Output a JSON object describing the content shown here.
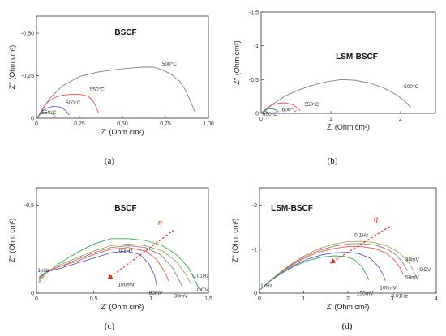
{
  "chart_data": [
    {
      "type": "line",
      "panel_label": "(a)",
      "title": "BSCF",
      "xlabel": "Z' (Ohm cm²)",
      "ylabel": "Z'' (Ohm cm²)",
      "xlim": [
        0,
        1.0
      ],
      "ylim": [
        0,
        -0.6
      ],
      "x_ticks": [
        "0",
        "0,25",
        "0,50",
        "0,75",
        "1,00"
      ],
      "y_ticks": [
        "0",
        "-0,25",
        "-0,50"
      ],
      "y_tick_values": [
        0,
        -0.25,
        -0.5
      ],
      "series": [
        {
          "name": "500°C",
          "color": "#808080",
          "x": [
            0.02,
            0.04,
            0.08,
            0.15,
            0.25,
            0.35,
            0.45,
            0.55,
            0.62,
            0.68,
            0.73,
            0.78,
            0.83,
            0.87,
            0.9,
            0.92
          ],
          "y": [
            -0.02,
            -0.06,
            -0.12,
            -0.19,
            -0.245,
            -0.27,
            -0.285,
            -0.295,
            -0.3,
            -0.3,
            -0.285,
            -0.26,
            -0.22,
            -0.16,
            -0.09,
            -0.04
          ]
        },
        {
          "name": "550°C",
          "color": "#e8584a",
          "x": [
            0.01,
            0.03,
            0.06,
            0.1,
            0.15,
            0.2,
            0.25,
            0.3,
            0.33,
            0.35,
            0.36
          ],
          "y": [
            -0.01,
            -0.05,
            -0.09,
            -0.12,
            -0.135,
            -0.14,
            -0.14,
            -0.13,
            -0.1,
            -0.06,
            -0.03
          ]
        },
        {
          "name": "600°C",
          "color": "#5b5bd6",
          "x": [
            0.01,
            0.03,
            0.06,
            0.1,
            0.14,
            0.17,
            0.19
          ],
          "y": [
            -0.01,
            -0.04,
            -0.06,
            -0.07,
            -0.065,
            -0.045,
            -0.02
          ]
        },
        {
          "name": "650°C",
          "color": "#3aaa55",
          "x": [
            0.0,
            0.02,
            0.05,
            0.08,
            0.1,
            0.11
          ],
          "y": [
            -0.005,
            -0.02,
            -0.035,
            -0.03,
            -0.02,
            -0.01
          ]
        }
      ],
      "curve_labels": [
        {
          "text": "500°C",
          "x": 0.73,
          "y": -0.31
        },
        {
          "text": "550°C",
          "x": 0.31,
          "y": -0.16
        },
        {
          "text": "600°C",
          "x": 0.17,
          "y": -0.08
        },
        {
          "text": "650°C",
          "x": 0.03,
          "y": -0.025
        }
      ]
    },
    {
      "type": "line",
      "panel_label": "(b)",
      "title": "LSM-BSCF",
      "xlabel": "Z' (Ohm cm²)",
      "ylabel": "Z'' (Ohm cm²)",
      "xlim": [
        0,
        2.5
      ],
      "ylim": [
        0,
        -1.5
      ],
      "x_ticks": [
        "0",
        "1",
        "2"
      ],
      "x_tick_values": [
        0,
        1,
        2
      ],
      "y_ticks": [
        "0",
        "-0,5",
        "-1",
        "-1,5"
      ],
      "y_tick_values": [
        0,
        -0.5,
        -1.0,
        -1.5
      ],
      "series": [
        {
          "name": "500°C",
          "color": "#808080",
          "x": [
            0.03,
            0.1,
            0.2,
            0.35,
            0.55,
            0.75,
            0.95,
            1.15,
            1.35,
            1.55,
            1.75,
            1.95,
            2.08,
            2.15
          ],
          "y": [
            -0.03,
            -0.09,
            -0.16,
            -0.26,
            -0.35,
            -0.42,
            -0.47,
            -0.5,
            -0.49,
            -0.45,
            -0.38,
            -0.27,
            -0.16,
            -0.08
          ]
        },
        {
          "name": "550°C",
          "color": "#e8584a",
          "x": [
            0.02,
            0.08,
            0.15,
            0.25,
            0.35,
            0.45,
            0.52,
            0.56
          ],
          "y": [
            -0.02,
            -0.07,
            -0.12,
            -0.15,
            -0.155,
            -0.13,
            -0.08,
            -0.04
          ]
        },
        {
          "name": "600°C",
          "color": "#5b5bd6",
          "x": [
            0.01,
            0.05,
            0.1,
            0.16,
            0.21,
            0.25
          ],
          "y": [
            -0.01,
            -0.04,
            -0.065,
            -0.07,
            -0.05,
            -0.02
          ]
        },
        {
          "name": "650°C",
          "color": "#3aaa55",
          "x": [
            0.0,
            0.03,
            0.06,
            0.09,
            0.11
          ],
          "y": [
            -0.005,
            -0.02,
            -0.03,
            -0.02,
            -0.01
          ]
        }
      ],
      "curve_labels": [
        {
          "text": "500°C",
          "x": 2.05,
          "y": -0.37
        },
        {
          "text": "550°C",
          "x": 0.62,
          "y": -0.11
        },
        {
          "text": "600°C",
          "x": 0.3,
          "y": -0.03
        },
        {
          "text": "650°C",
          "x": 0.02,
          "y": 0.035
        }
      ]
    },
    {
      "type": "line",
      "panel_label": "(c)",
      "title": "BSCF",
      "xlabel": "Z' (Ohm cm²)",
      "ylabel": "Z'' (Ohm cm²)",
      "xlim": [
        0,
        1.5
      ],
      "ylim": [
        0,
        -0.6
      ],
      "x_ticks": [
        "0",
        "0,5",
        "1",
        "1,5"
      ],
      "x_tick_values": [
        0,
        0.5,
        1.0,
        1.5
      ],
      "y_ticks": [
        "0",
        "-0,5"
      ],
      "y_tick_values": [
        0,
        -0.5
      ],
      "series": [
        {
          "name": "OCV",
          "color": "#3aaa55",
          "x": [
            0.02,
            0.08,
            0.2,
            0.35,
            0.5,
            0.65,
            0.8,
            0.95,
            1.1,
            1.22,
            1.32,
            1.38,
            1.42
          ],
          "y": [
            -0.06,
            -0.11,
            -0.17,
            -0.23,
            -0.28,
            -0.31,
            -0.31,
            -0.3,
            -0.27,
            -0.22,
            -0.15,
            -0.08,
            -0.02
          ]
        },
        {
          "name": "0.01Hz",
          "color": "#b0a060",
          "x": [
            0.02,
            0.08,
            0.2,
            0.35,
            0.5,
            0.65,
            0.8,
            0.95,
            1.1,
            1.22,
            1.3,
            1.35
          ],
          "y": [
            -0.07,
            -0.12,
            -0.16,
            -0.2,
            -0.24,
            -0.27,
            -0.28,
            -0.27,
            -0.24,
            -0.18,
            -0.11,
            -0.05
          ]
        },
        {
          "name": "30mV",
          "color": "#888888",
          "x": [
            0.02,
            0.08,
            0.2,
            0.35,
            0.5,
            0.65,
            0.8,
            0.95,
            1.08,
            1.18,
            1.24,
            1.27
          ],
          "y": [
            -0.08,
            -0.12,
            -0.15,
            -0.19,
            -0.23,
            -0.26,
            -0.27,
            -0.26,
            -0.22,
            -0.15,
            -0.08,
            -0.04
          ]
        },
        {
          "name": "50mV",
          "color": "#e8584a",
          "x": [
            0.02,
            0.08,
            0.2,
            0.35,
            0.5,
            0.65,
            0.8,
            0.95,
            1.05,
            1.12,
            1.16
          ],
          "y": [
            -0.08,
            -0.12,
            -0.15,
            -0.18,
            -0.22,
            -0.25,
            -0.26,
            -0.24,
            -0.19,
            -0.12,
            -0.06
          ]
        },
        {
          "name": "100mV",
          "color": "#5b5bd6",
          "x": [
            0.02,
            0.08,
            0.2,
            0.35,
            0.5,
            0.65,
            0.78,
            0.9,
            0.98,
            1.03,
            1.05
          ],
          "y": [
            -0.09,
            -0.12,
            -0.14,
            -0.17,
            -0.2,
            -0.23,
            -0.24,
            -0.22,
            -0.17,
            -0.1,
            -0.04
          ]
        }
      ],
      "curve_labels": [
        {
          "text": "1kHz",
          "x": 0.01,
          "y": -0.12
        },
        {
          "text": "0.1Hz",
          "x": 0.72,
          "y": -0.23
        },
        {
          "text": "0.01Hz",
          "x": 1.36,
          "y": -0.09
        },
        {
          "text": "OCV",
          "x": 1.4,
          "y": -0.01
        },
        {
          "text": "30mV",
          "x": 1.2,
          "y": 0.025
        },
        {
          "text": "50mV",
          "x": 0.98,
          "y": 0.01
        },
        {
          "text": "100mV",
          "x": 0.71,
          "y": -0.04
        }
      ],
      "arrow": {
        "label": "η",
        "x1": 1.2,
        "y1": -0.36,
        "x2": 0.62,
        "y2": -0.08
      }
    },
    {
      "type": "line",
      "panel_label": "(d)",
      "title": "LSM-BSCF",
      "xlabel": "Z' (Ohm cm²)",
      "ylabel": "Z'' (Ohm cm²)",
      "xlim": [
        0,
        4
      ],
      "ylim": [
        0,
        -2.4
      ],
      "x_ticks": [
        "0",
        "1",
        "2",
        "3",
        "4"
      ],
      "x_tick_values": [
        0,
        1,
        2,
        3,
        4
      ],
      "y_ticks": [
        "0",
        "-1",
        "-2"
      ],
      "y_tick_values": [
        0,
        -1,
        -2
      ],
      "series": [
        {
          "name": "OCV",
          "color": "#b0a060",
          "x": [
            0.02,
            0.2,
            0.5,
            0.8,
            1.1,
            1.4,
            1.7,
            2.0,
            2.3,
            2.6,
            2.9,
            3.15,
            3.35,
            3.48,
            3.55
          ],
          "y": [
            -0.08,
            -0.25,
            -0.5,
            -0.72,
            -0.9,
            -1.03,
            -1.12,
            -1.17,
            -1.18,
            -1.15,
            -1.07,
            -0.93,
            -0.74,
            -0.52,
            -0.35
          ]
        },
        {
          "name": "30mV",
          "color": "#888888",
          "x": [
            0.02,
            0.2,
            0.5,
            0.8,
            1.1,
            1.4,
            1.7,
            2.0,
            2.3,
            2.6,
            2.9,
            3.1,
            3.25,
            3.35
          ],
          "y": [
            -0.08,
            -0.25,
            -0.49,
            -0.7,
            -0.87,
            -0.99,
            -1.07,
            -1.12,
            -1.13,
            -1.1,
            -1.0,
            -0.86,
            -0.68,
            -0.5
          ]
        },
        {
          "name": "50mV",
          "color": "#e8584a",
          "x": [
            0.02,
            0.2,
            0.5,
            0.8,
            1.1,
            1.4,
            1.7,
            2.0,
            2.3,
            2.6,
            2.85,
            3.05,
            3.18,
            3.25
          ],
          "y": [
            -0.08,
            -0.25,
            -0.48,
            -0.68,
            -0.84,
            -0.95,
            -1.02,
            -1.06,
            -1.06,
            -1.02,
            -0.92,
            -0.76,
            -0.58,
            -0.42
          ]
        },
        {
          "name": "100mV",
          "color": "#5b5bd6",
          "x": [
            0.02,
            0.2,
            0.5,
            0.8,
            1.1,
            1.4,
            1.7,
            2.0,
            2.25,
            2.5,
            2.68,
            2.8,
            2.85
          ],
          "y": [
            -0.08,
            -0.25,
            -0.46,
            -0.64,
            -0.78,
            -0.87,
            -0.92,
            -0.93,
            -0.9,
            -0.8,
            -0.62,
            -0.42,
            -0.28
          ]
        },
        {
          "name": "150mV",
          "color": "#3aaa55",
          "x": [
            0.02,
            0.2,
            0.5,
            0.8,
            1.1,
            1.4,
            1.7,
            1.95,
            2.15,
            2.32,
            2.42,
            2.48
          ],
          "y": [
            -0.08,
            -0.25,
            -0.45,
            -0.62,
            -0.74,
            -0.82,
            -0.85,
            -0.83,
            -0.76,
            -0.6,
            -0.42,
            -0.3
          ]
        }
      ],
      "curve_labels": [
        {
          "text": "1kHz",
          "x": 0.02,
          "y": -0.13
        },
        {
          "text": "0.1Hz",
          "x": 2.15,
          "y": -1.28
        },
        {
          "text": "30mV",
          "x": 3.3,
          "y": -0.73
        },
        {
          "text": "OCV",
          "x": 3.62,
          "y": -0.5
        },
        {
          "text": "50mV",
          "x": 3.3,
          "y": -0.32
        },
        {
          "text": "100mV",
          "x": 2.72,
          "y": -0.08
        },
        {
          "text": "150mV",
          "x": 2.2,
          "y": 0.05
        },
        {
          "text": "0.01Hz",
          "x": 2.98,
          "y": 0.1
        }
      ],
      "arrow": {
        "label": "η",
        "x1": 2.95,
        "y1": -1.52,
        "x2": 1.6,
        "y2": -0.68
      }
    }
  ]
}
